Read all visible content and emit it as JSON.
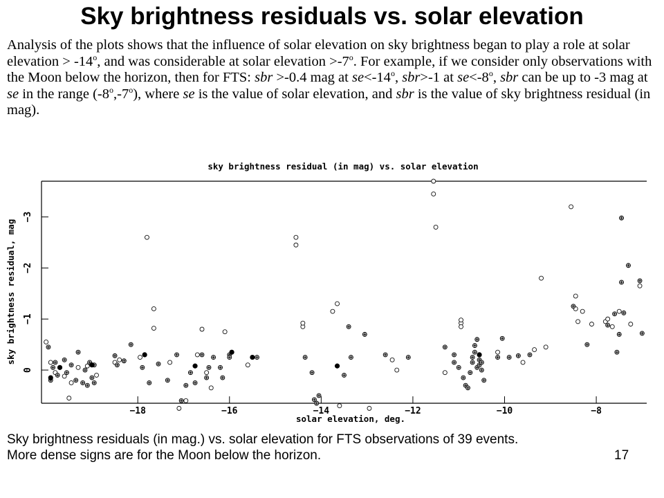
{
  "slide": {
    "title": "Sky brightness residuals vs. solar elevation",
    "analysis": {
      "s1": "Analysis of the plots shows that the influence of solar elevation on sky brightness began to play a role at solar elevation > -14",
      "sup": "o",
      "s2": ", and was considerable at solar elevation >-7",
      "s3": ". For example, if we consider only observations with the Moon below the horizon, then for FTS: ",
      "sbr": "sbr",
      "s4": " >-0.4 mag at ",
      "se": "se",
      "s5": "<-14",
      "s6": ", ",
      "s7": ">-1 at ",
      "s8": "<-8",
      "s9": ", ",
      "s10": " can be up to -3 mag at ",
      "s11": " in the range (-8",
      "s12": ",-7",
      "s13": "), where ",
      "s14": " is the value of solar elevation, and ",
      "s15": " is the value of sky brightness residual (in mag)."
    },
    "caption_line1": "Sky brightness residuals (in mag.) vs. solar elevation for FTS observations  of 39 events.",
    "caption_line2": "More dense signs are for the Moon below the horizon.",
    "slide_number": "17"
  },
  "chart_data": {
    "type": "scatter",
    "title": "sky brightness residual (in mag) vs. solar elevation",
    "xlabel": "solar elevation, deg.",
    "ylabel": "sky brightness residual, mag",
    "xlim": [
      -20.1,
      -6.9
    ],
    "ylim": [
      0.65,
      -3.7
    ],
    "y_inverted": true,
    "x_ticks": [
      -18,
      -16,
      -14,
      -12,
      -10,
      -8
    ],
    "x_tick_labels": [
      "−18",
      "−16",
      "−14",
      "−12",
      "−10",
      "−8"
    ],
    "y_ticks": [
      0,
      -1,
      -2,
      -3
    ],
    "y_tick_labels": [
      "0",
      "−1",
      "−2",
      "−3"
    ],
    "grid": false,
    "legend": "none",
    "series": [
      {
        "style": "open-circle",
        "points": [
          [
            -20.0,
            -0.55
          ],
          [
            -19.9,
            -0.15
          ],
          [
            -19.8,
            0.05
          ],
          [
            -19.6,
            0.12
          ],
          [
            -19.5,
            0.55
          ],
          [
            -19.45,
            0.25
          ],
          [
            -19.3,
            -0.05
          ],
          [
            -19.1,
            -0.08
          ],
          [
            -18.9,
            0.1
          ],
          [
            -18.5,
            -0.15
          ],
          [
            -18.4,
            -0.2
          ],
          [
            -17.95,
            -0.25
          ],
          [
            -17.8,
            -2.6
          ],
          [
            -17.65,
            -1.2
          ],
          [
            -17.65,
            -0.82
          ],
          [
            -17.3,
            -0.15
          ],
          [
            -17.1,
            0.75
          ],
          [
            -16.95,
            0.6
          ],
          [
            -16.7,
            -0.3
          ],
          [
            -16.6,
            -0.8
          ],
          [
            -16.5,
            0.05
          ],
          [
            -16.4,
            0.35
          ],
          [
            -16.1,
            -0.75
          ],
          [
            -15.6,
            -0.1
          ],
          [
            -14.55,
            -2.6
          ],
          [
            -14.55,
            -2.45
          ],
          [
            -14.4,
            -0.85
          ],
          [
            -14.4,
            -0.92
          ],
          [
            -13.75,
            -1.15
          ],
          [
            -13.65,
            -1.3
          ],
          [
            -13.6,
            0.7
          ],
          [
            -12.95,
            0.75
          ],
          [
            -12.45,
            -0.2
          ],
          [
            -12.35,
            0.0
          ],
          [
            -11.55,
            -3.7
          ],
          [
            -11.55,
            -3.45
          ],
          [
            -11.5,
            -2.8
          ],
          [
            -11.3,
            0.05
          ],
          [
            -10.95,
            -0.92
          ],
          [
            -10.95,
            -0.98
          ],
          [
            -10.95,
            -0.85
          ],
          [
            -10.15,
            -0.35
          ],
          [
            -9.6,
            -0.15
          ],
          [
            -9.35,
            -0.4
          ],
          [
            -9.2,
            -1.8
          ],
          [
            -9.1,
            -0.45
          ],
          [
            -8.55,
            -3.2
          ],
          [
            -8.45,
            -1.45
          ],
          [
            -8.45,
            -1.2
          ],
          [
            -8.4,
            -0.95
          ],
          [
            -8.3,
            -1.15
          ],
          [
            -8.1,
            -0.9
          ],
          [
            -7.8,
            -0.95
          ],
          [
            -7.75,
            -1.0
          ],
          [
            -7.65,
            -0.85
          ],
          [
            -7.5,
            -1.15
          ],
          [
            -7.25,
            -0.9
          ],
          [
            -7.05,
            -1.65
          ]
        ]
      },
      {
        "style": "dense-sign",
        "points": [
          [
            -19.95,
            -0.45
          ],
          [
            -19.9,
            0.2
          ],
          [
            -19.85,
            -0.05
          ],
          [
            -19.8,
            -0.15
          ],
          [
            -19.75,
            0.1
          ],
          [
            -19.6,
            -0.2
          ],
          [
            -19.55,
            0.05
          ],
          [
            -19.45,
            -0.1
          ],
          [
            -19.35,
            0.2
          ],
          [
            -19.3,
            -0.35
          ],
          [
            -19.2,
            0.25
          ],
          [
            -19.15,
            0.0
          ],
          [
            -19.1,
            0.3
          ],
          [
            -19.05,
            -0.15
          ],
          [
            -19.0,
            0.15
          ],
          [
            -18.95,
            -0.1
          ],
          [
            -18.95,
            0.25
          ],
          [
            -18.5,
            -0.28
          ],
          [
            -18.45,
            -0.1
          ],
          [
            -18.3,
            -0.18
          ],
          [
            -18.15,
            -0.5
          ],
          [
            -17.9,
            -0.05
          ],
          [
            -17.75,
            0.25
          ],
          [
            -17.55,
            -0.12
          ],
          [
            -17.35,
            0.2
          ],
          [
            -17.15,
            -0.3
          ],
          [
            -17.05,
            0.6
          ],
          [
            -16.95,
            0.3
          ],
          [
            -16.85,
            0.05
          ],
          [
            -16.75,
            0.25
          ],
          [
            -16.6,
            -0.3
          ],
          [
            -16.5,
            0.15
          ],
          [
            -16.45,
            -0.05
          ],
          [
            -16.35,
            -0.25
          ],
          [
            -16.2,
            -0.05
          ],
          [
            -16.15,
            0.15
          ],
          [
            -16.0,
            -0.3
          ],
          [
            -16.0,
            -0.25
          ],
          [
            -15.4,
            -0.25
          ],
          [
            -14.35,
            -0.25
          ],
          [
            -14.2,
            0.05
          ],
          [
            -14.15,
            0.58
          ],
          [
            -14.1,
            0.65
          ],
          [
            -14.05,
            0.5
          ],
          [
            -13.5,
            0.1
          ],
          [
            -13.4,
            -0.85
          ],
          [
            -13.35,
            -0.25
          ],
          [
            -13.05,
            -0.7
          ],
          [
            -12.6,
            -0.3
          ],
          [
            -12.1,
            -0.25
          ],
          [
            -11.3,
            -0.45
          ],
          [
            -11.1,
            -0.3
          ],
          [
            -11.1,
            -0.15
          ],
          [
            -11.0,
            -0.05
          ],
          [
            -10.9,
            0.15
          ],
          [
            -10.85,
            0.3
          ],
          [
            -10.8,
            0.35
          ],
          [
            -10.75,
            0.05
          ],
          [
            -10.7,
            -0.25
          ],
          [
            -10.7,
            -0.15
          ],
          [
            -10.65,
            -0.35
          ],
          [
            -10.65,
            -0.48
          ],
          [
            -10.6,
            -0.6
          ],
          [
            -10.6,
            -0.05
          ],
          [
            -10.55,
            -0.1
          ],
          [
            -10.55,
            -0.2
          ],
          [
            -10.5,
            -0.15
          ],
          [
            -10.5,
            0.0
          ],
          [
            -10.45,
            0.2
          ],
          [
            -10.15,
            -0.25
          ],
          [
            -10.05,
            -0.62
          ],
          [
            -9.9,
            -0.25
          ],
          [
            -9.7,
            -0.28
          ],
          [
            -9.45,
            -0.3
          ],
          [
            -8.5,
            -1.25
          ],
          [
            -8.2,
            -0.5
          ],
          [
            -7.75,
            -0.88
          ],
          [
            -7.6,
            -1.1
          ],
          [
            -7.55,
            -0.35
          ],
          [
            -7.5,
            -0.7
          ],
          [
            -7.45,
            -1.72
          ],
          [
            -7.45,
            -2.98
          ],
          [
            -7.4,
            -1.12
          ],
          [
            -7.3,
            -2.05
          ],
          [
            -7.05,
            -1.75
          ],
          [
            -7.0,
            -0.72
          ]
        ]
      },
      {
        "style": "filled-dot",
        "points": [
          [
            -19.7,
            -0.05
          ],
          [
            -19.0,
            -0.1
          ],
          [
            -17.85,
            -0.3
          ],
          [
            -16.75,
            -0.08
          ],
          [
            -15.95,
            -0.35
          ],
          [
            -15.5,
            -0.25
          ],
          [
            -13.65,
            -0.08
          ],
          [
            -10.55,
            -0.3
          ],
          [
            -19.9,
            0.15
          ]
        ]
      }
    ]
  }
}
